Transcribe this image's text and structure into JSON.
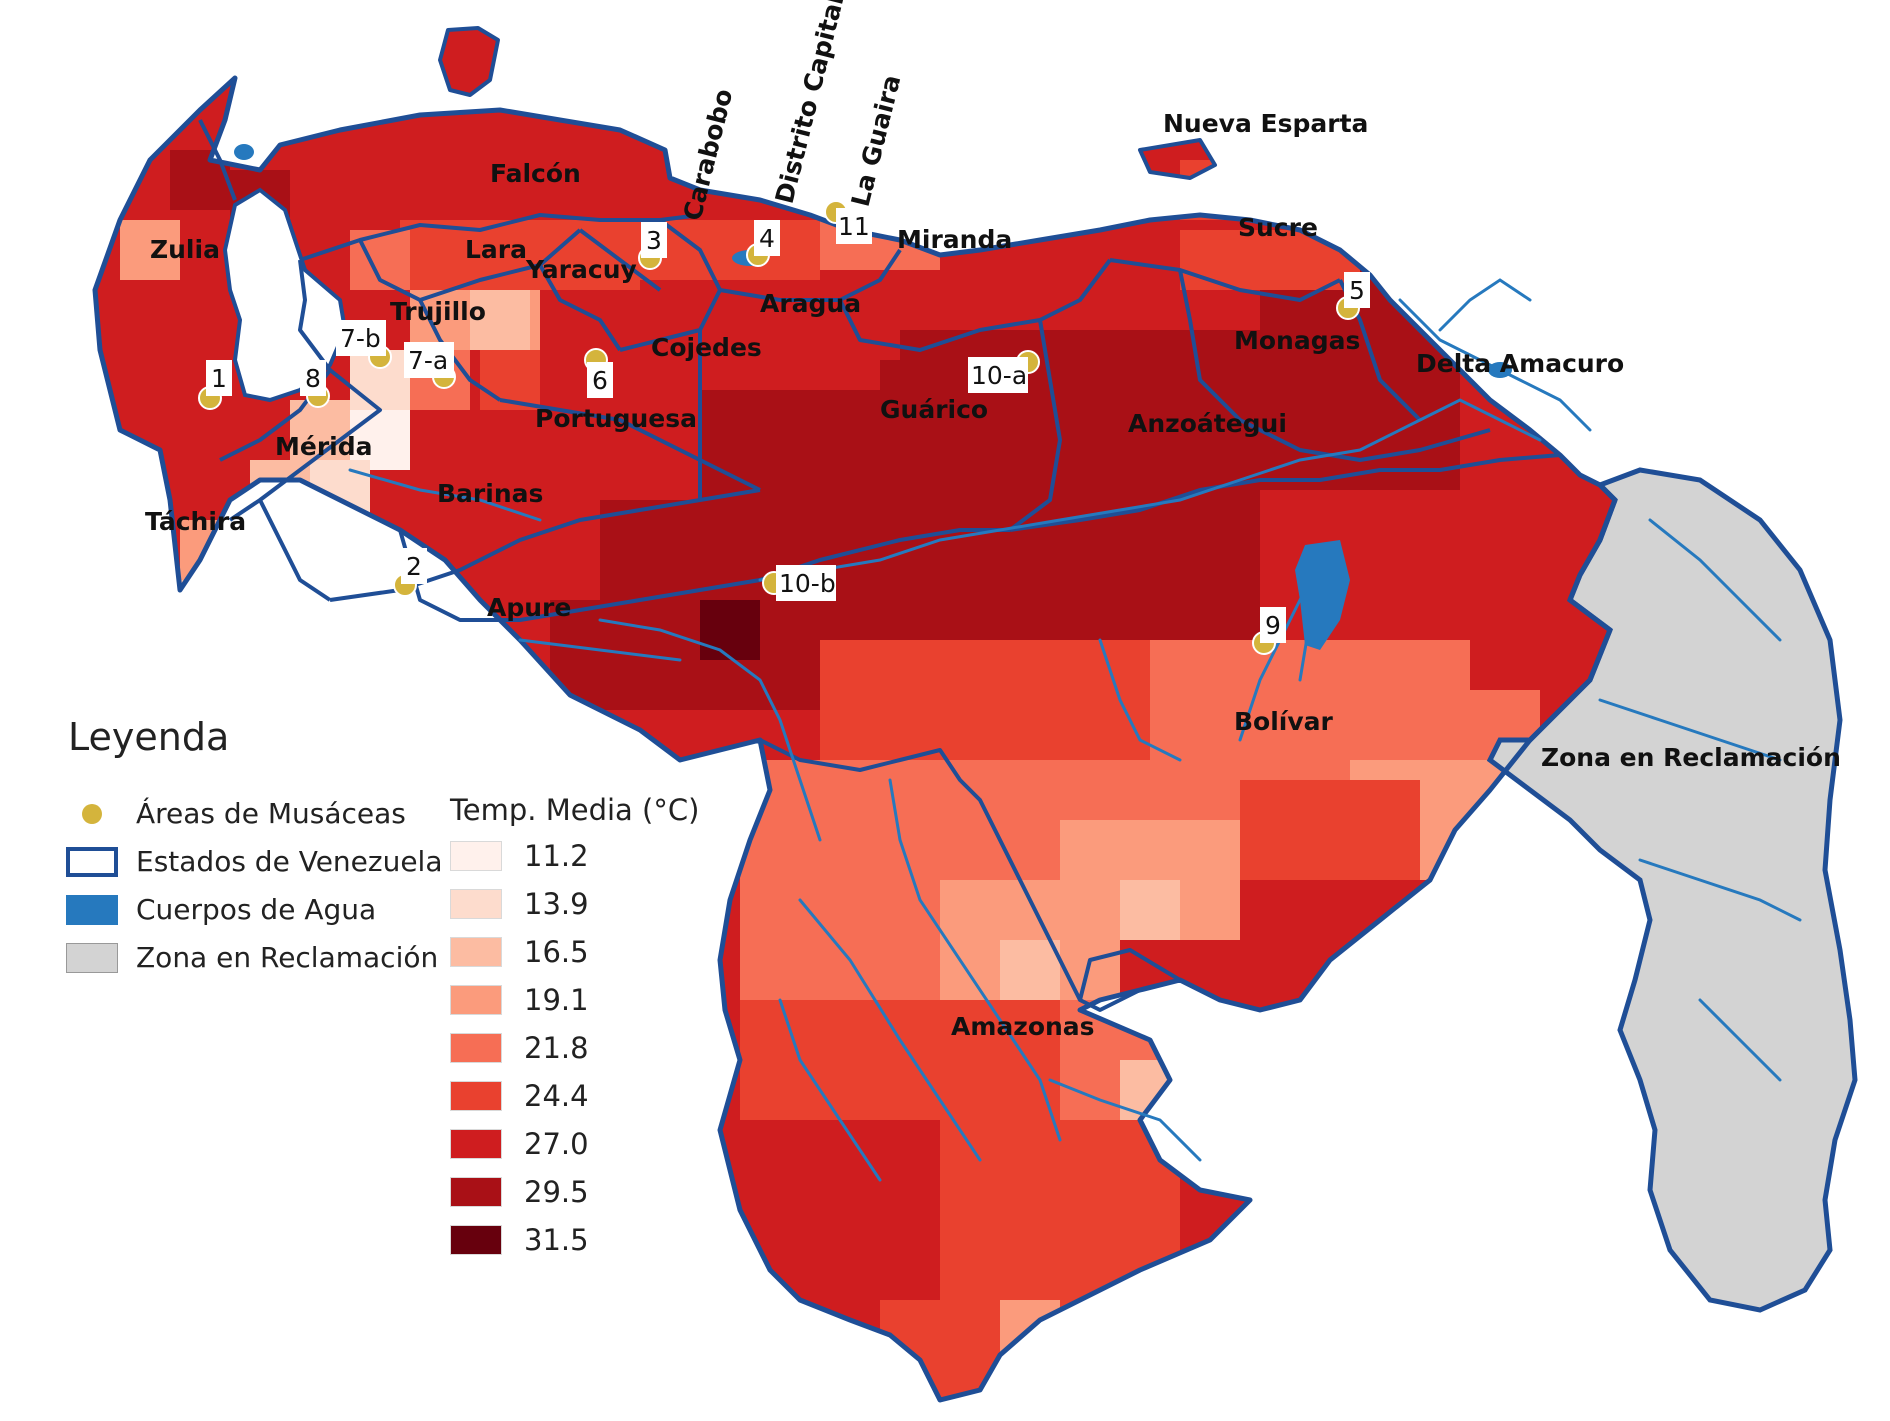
{
  "legend": {
    "title": "Leyenda",
    "items": [
      {
        "label": "Áreas de Musáceas",
        "symbol": "circle",
        "color": "#d4b43c"
      },
      {
        "label": "Estados de Venezuela",
        "symbol": "outline",
        "color": "#1f4e96"
      },
      {
        "label": "Cuerpos de Agua",
        "symbol": "fill",
        "color": "#2679be"
      },
      {
        "label": "Zona en Reclamación",
        "symbol": "fill",
        "color": "#d3d3d3"
      }
    ],
    "temperature": {
      "title": "Temp. Media (°C)",
      "classes": [
        {
          "value": "11.2",
          "color": "#fff1ec"
        },
        {
          "value": "13.9",
          "color": "#fddccd"
        },
        {
          "value": "16.5",
          "color": "#fcbca2"
        },
        {
          "value": "19.1",
          "color": "#fb9b7c"
        },
        {
          "value": "21.8",
          "color": "#f66e55"
        },
        {
          "value": "24.4",
          "color": "#e9412f"
        },
        {
          "value": "27.0",
          "color": "#cf1d1f"
        },
        {
          "value": "29.5",
          "color": "#a91016"
        },
        {
          "value": "31.5",
          "color": "#67000d"
        }
      ]
    }
  },
  "states": [
    "Zulia",
    "Falcón",
    "Lara",
    "Yaracuy",
    "Trujillo",
    "Mérida",
    "Táchira",
    "Barinas",
    "Portuguesa",
    "Cojedes",
    "Aragua",
    "Miranda",
    "Carabobo",
    "Distrito Capital",
    "La Guaira",
    "Nueva Esparta",
    "Sucre",
    "Monagas",
    "Delta Amacuro",
    "Anzoátegui",
    "Guárico",
    "Apure",
    "Bolívar",
    "Amazonas",
    "Zona en Reclamación"
  ],
  "sites": [
    "1",
    "2",
    "3",
    "4",
    "5",
    "6",
    "7-a",
    "7-b",
    "8",
    "9",
    "10-a",
    "10-b",
    "11"
  ],
  "colors": {
    "outline": "#1f4e96",
    "water": "#2679be",
    "claim_zone": "#d3d3d3",
    "site": "#d4b43c"
  }
}
